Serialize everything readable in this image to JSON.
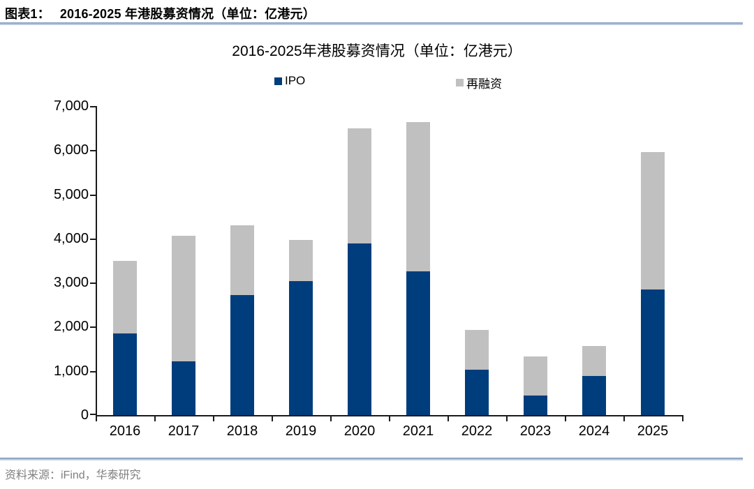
{
  "header": {
    "label": "图表1：",
    "title": "2016-2025 年港股募资情况（单位：亿港元）"
  },
  "chart_data": {
    "type": "bar",
    "stacked": true,
    "title": "2016-2025年港股募资情况（单位：亿港元）",
    "categories": [
      "2016",
      "2017",
      "2018",
      "2019",
      "2020",
      "2021",
      "2022",
      "2023",
      "2024",
      "2025"
    ],
    "series": [
      {
        "name": "IPO",
        "color": "#003d7c",
        "values": [
          1850,
          1210,
          2720,
          3030,
          3880,
          3250,
          1030,
          450,
          880,
          2850
        ]
      },
      {
        "name": "再融资",
        "color": "#c0c0c0",
        "values": [
          1650,
          2850,
          1580,
          930,
          2620,
          3380,
          900,
          880,
          680,
          3100
        ]
      }
    ],
    "totals": [
      3500,
      4060,
      4300,
      3960,
      6500,
      6630,
      1930,
      1330,
      1560,
      5950
    ],
    "ylim": [
      0,
      7000
    ],
    "ytick_step": 1000,
    "ytick_labels": [
      "0",
      "1,000",
      "2,000",
      "3,000",
      "4,000",
      "5,000",
      "6,000",
      "7,000"
    ],
    "legend_position": "top",
    "grid": false,
    "axis_color": "#1a1a1a"
  },
  "source": {
    "text": "资料来源：iFind，华泰研究"
  }
}
